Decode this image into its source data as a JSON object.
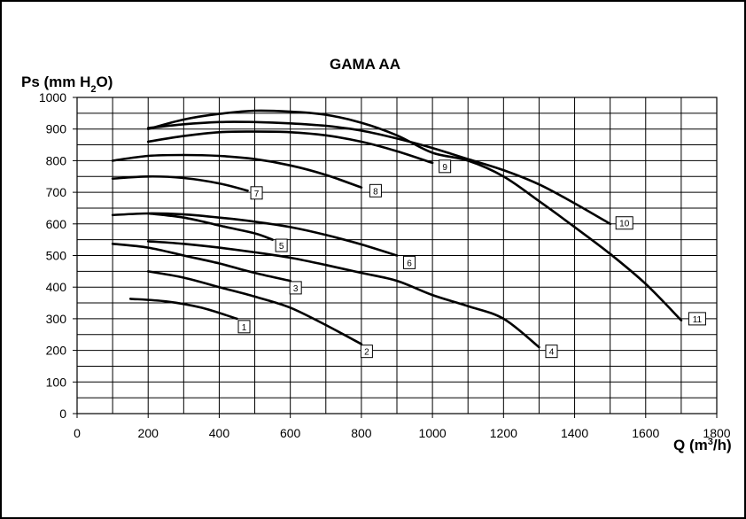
{
  "chart_data": {
    "type": "line",
    "title": "GAMA AA",
    "ylabel": "Ps (mm H2O)",
    "xlabel": "Q (m3/h)",
    "xlim": [
      0,
      1800
    ],
    "ylim": [
      0,
      1000
    ],
    "x_ticks": [
      0,
      200,
      400,
      600,
      800,
      1000,
      1200,
      1400,
      1600,
      1800
    ],
    "y_ticks": [
      0,
      100,
      200,
      300,
      400,
      500,
      600,
      700,
      800,
      900,
      1000
    ],
    "x_grid_step": 100,
    "y_grid_step": 50,
    "grid": true,
    "line_color": "#000000",
    "series": [
      {
        "name": "1",
        "label_at": [
          470,
          275
        ],
        "points": [
          [
            150,
            363
          ],
          [
            250,
            355
          ],
          [
            350,
            335
          ],
          [
            450,
            300
          ]
        ]
      },
      {
        "name": "2",
        "label_at": [
          815,
          197
        ],
        "points": [
          [
            200,
            450
          ],
          [
            300,
            430
          ],
          [
            400,
            400
          ],
          [
            500,
            370
          ],
          [
            600,
            335
          ],
          [
            700,
            280
          ],
          [
            800,
            220
          ]
        ]
      },
      {
        "name": "3",
        "label_at": [
          615,
          398
        ],
        "points": [
          [
            100,
            537
          ],
          [
            200,
            525
          ],
          [
            300,
            500
          ],
          [
            400,
            475
          ],
          [
            500,
            445
          ],
          [
            600,
            420
          ]
        ]
      },
      {
        "name": "4",
        "label_at": [
          1335,
          197
        ],
        "points": [
          [
            200,
            545
          ],
          [
            300,
            537
          ],
          [
            400,
            525
          ],
          [
            500,
            510
          ],
          [
            600,
            493
          ],
          [
            700,
            470
          ],
          [
            800,
            445
          ],
          [
            900,
            420
          ],
          [
            1000,
            375
          ],
          [
            1100,
            340
          ],
          [
            1200,
            300
          ],
          [
            1300,
            210
          ]
        ]
      },
      {
        "name": "5",
        "label_at": [
          575,
          532
        ],
        "points": [
          [
            200,
            633
          ],
          [
            300,
            620
          ],
          [
            400,
            595
          ],
          [
            500,
            570
          ],
          [
            550,
            550
          ]
        ]
      },
      {
        "name": "6",
        "label_at": [
          935,
          478
        ],
        "points": [
          [
            100,
            628
          ],
          [
            200,
            633
          ],
          [
            300,
            630
          ],
          [
            400,
            620
          ],
          [
            500,
            607
          ],
          [
            600,
            590
          ],
          [
            700,
            565
          ],
          [
            800,
            535
          ],
          [
            900,
            500
          ]
        ]
      },
      {
        "name": "7",
        "label_at": [
          505,
          698
        ],
        "points": [
          [
            100,
            743
          ],
          [
            200,
            750
          ],
          [
            300,
            745
          ],
          [
            400,
            728
          ],
          [
            480,
            705
          ]
        ]
      },
      {
        "name": "8",
        "label_at": [
          840,
          705
        ],
        "points": [
          [
            100,
            800
          ],
          [
            200,
            815
          ],
          [
            300,
            818
          ],
          [
            400,
            815
          ],
          [
            500,
            805
          ],
          [
            600,
            785
          ],
          [
            700,
            755
          ],
          [
            800,
            715
          ]
        ]
      },
      {
        "name": "9",
        "label_at": [
          1035,
          782
        ],
        "points": [
          [
            200,
            860
          ],
          [
            300,
            878
          ],
          [
            400,
            890
          ],
          [
            500,
            892
          ],
          [
            600,
            890
          ],
          [
            700,
            880
          ],
          [
            800,
            860
          ],
          [
            900,
            830
          ],
          [
            1000,
            793
          ]
        ]
      },
      {
        "name": "10",
        "label_at": [
          1540,
          603
        ],
        "points": [
          [
            200,
            903
          ],
          [
            300,
            915
          ],
          [
            400,
            922
          ],
          [
            500,
            922
          ],
          [
            600,
            918
          ],
          [
            700,
            910
          ],
          [
            800,
            895
          ],
          [
            900,
            870
          ],
          [
            1000,
            840
          ],
          [
            1100,
            805
          ],
          [
            1200,
            770
          ],
          [
            1300,
            725
          ],
          [
            1400,
            665
          ],
          [
            1500,
            600
          ]
        ]
      },
      {
        "name": "11",
        "label_at": [
          1745,
          300
        ],
        "points": [
          [
            200,
            900
          ],
          [
            300,
            930
          ],
          [
            400,
            948
          ],
          [
            500,
            958
          ],
          [
            600,
            955
          ],
          [
            700,
            945
          ],
          [
            800,
            920
          ],
          [
            900,
            880
          ],
          [
            1000,
            825
          ],
          [
            1100,
            800
          ],
          [
            1200,
            750
          ],
          [
            1300,
            672
          ],
          [
            1400,
            590
          ],
          [
            1500,
            505
          ],
          [
            1600,
            410
          ],
          [
            1700,
            295
          ]
        ]
      }
    ]
  }
}
